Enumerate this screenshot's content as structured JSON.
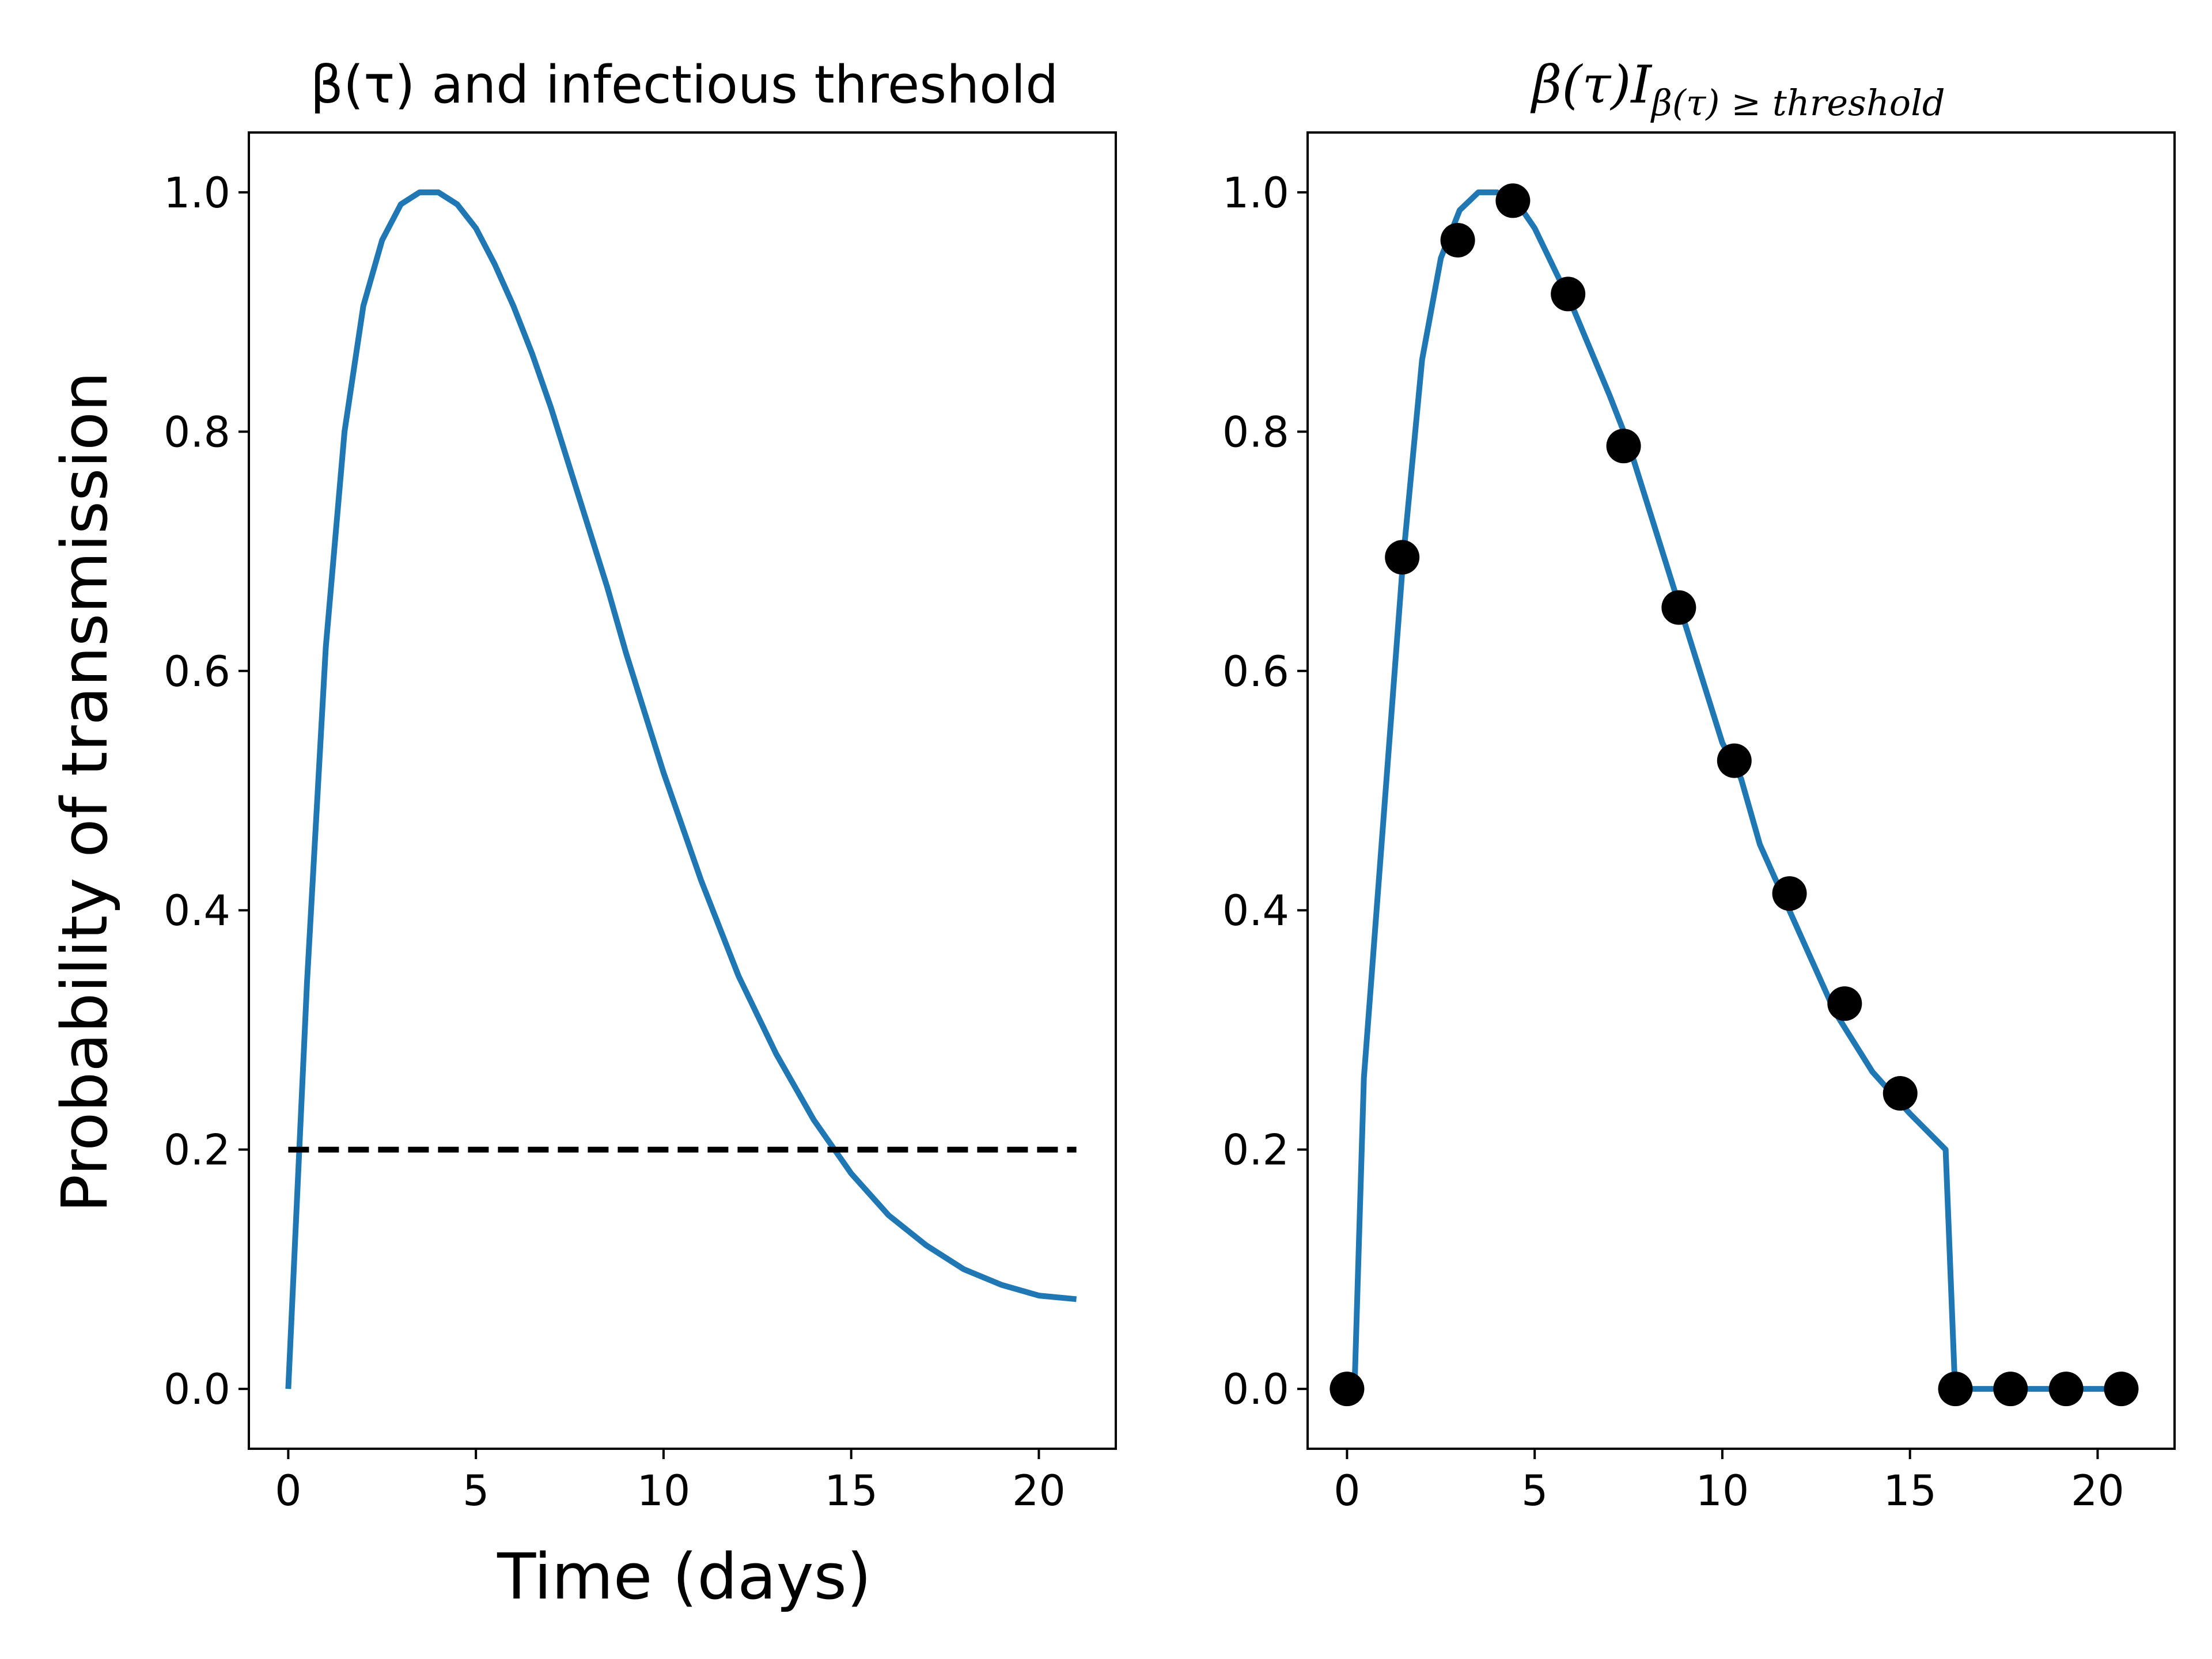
{
  "chart_data": [
    {
      "type": "line",
      "title": "β(τ) and infectious threshold",
      "xlabel": "Time (days)",
      "ylabel": "Probability of transmission",
      "xlim": [
        -1.05,
        22.05
      ],
      "ylim": [
        -0.05,
        1.05
      ],
      "xticks": [
        "0",
        "5",
        "10",
        "15",
        "20"
      ],
      "yticks": [
        "0.0",
        "0.2",
        "0.4",
        "0.6",
        "0.8",
        "1.0"
      ],
      "grid": false,
      "series": [
        {
          "style": "solid",
          "color": "#1f77b4",
          "x": [
            0,
            0.5,
            1,
            1.5,
            2,
            2.5,
            3,
            3.5,
            4,
            4.5,
            5,
            5.5,
            6,
            6.5,
            7,
            7.5,
            8,
            8.5,
            9,
            9.5,
            10,
            11,
            12,
            13,
            14,
            15,
            16,
            17,
            18,
            19,
            20,
            21
          ],
          "y": [
            0.0,
            0.34,
            0.62,
            0.8,
            0.905,
            0.96,
            0.99,
            1.0,
            1.0,
            0.99,
            0.97,
            0.94,
            0.905,
            0.865,
            0.82,
            0.77,
            0.72,
            0.67,
            0.615,
            0.565,
            0.515,
            0.425,
            0.345,
            0.28,
            0.225,
            0.18,
            0.145,
            0.12,
            0.1,
            0.087,
            0.078,
            0.075
          ]
        },
        {
          "style": "dashed",
          "color": "#000000",
          "x": [
            0,
            21
          ],
          "y": [
            0.2,
            0.2
          ]
        }
      ]
    },
    {
      "type": "line",
      "title_main": "β(τ)I",
      "title_sub": "β(τ) ≥ threshold",
      "xlim": [
        -1.05,
        22.05
      ],
      "ylim": [
        -0.05,
        1.05
      ],
      "xticks": [
        "0",
        "5",
        "10",
        "15",
        "20"
      ],
      "yticks": [
        "0.0",
        "0.2",
        "0.4",
        "0.6",
        "0.8",
        "1.0"
      ],
      "grid": false,
      "series": [
        {
          "style": "solid",
          "color": "#1f77b4",
          "x": [
            0,
            0.2,
            0.45,
            1.5,
            2,
            2.5,
            3,
            3.5,
            4,
            4.5,
            5,
            6,
            7,
            7.5,
            8,
            9,
            10,
            10.5,
            11,
            12,
            13,
            14,
            15,
            15.95,
            16.2,
            21
          ],
          "y": [
            0.0,
            0.0,
            0.26,
            0.695,
            0.86,
            0.945,
            0.985,
            1.0,
            1.0,
            0.993,
            0.97,
            0.905,
            0.83,
            0.79,
            0.74,
            0.64,
            0.54,
            0.51,
            0.455,
            0.385,
            0.315,
            0.265,
            0.23,
            0.2,
            0.0,
            0.0
          ]
        },
        {
          "style": "markers",
          "color": "#000000",
          "x": [
            0,
            1.47,
            2.95,
            4.42,
            5.89,
            7.37,
            8.84,
            10.32,
            11.79,
            13.26,
            14.74,
            16.21,
            17.68,
            19.16,
            20.63
          ],
          "y": [
            0.0,
            0.695,
            0.96,
            0.993,
            0.915,
            0.788,
            0.653,
            0.525,
            0.414,
            0.322,
            0.247,
            0.0,
            0.0,
            0.0,
            0.0
          ]
        }
      ]
    }
  ]
}
